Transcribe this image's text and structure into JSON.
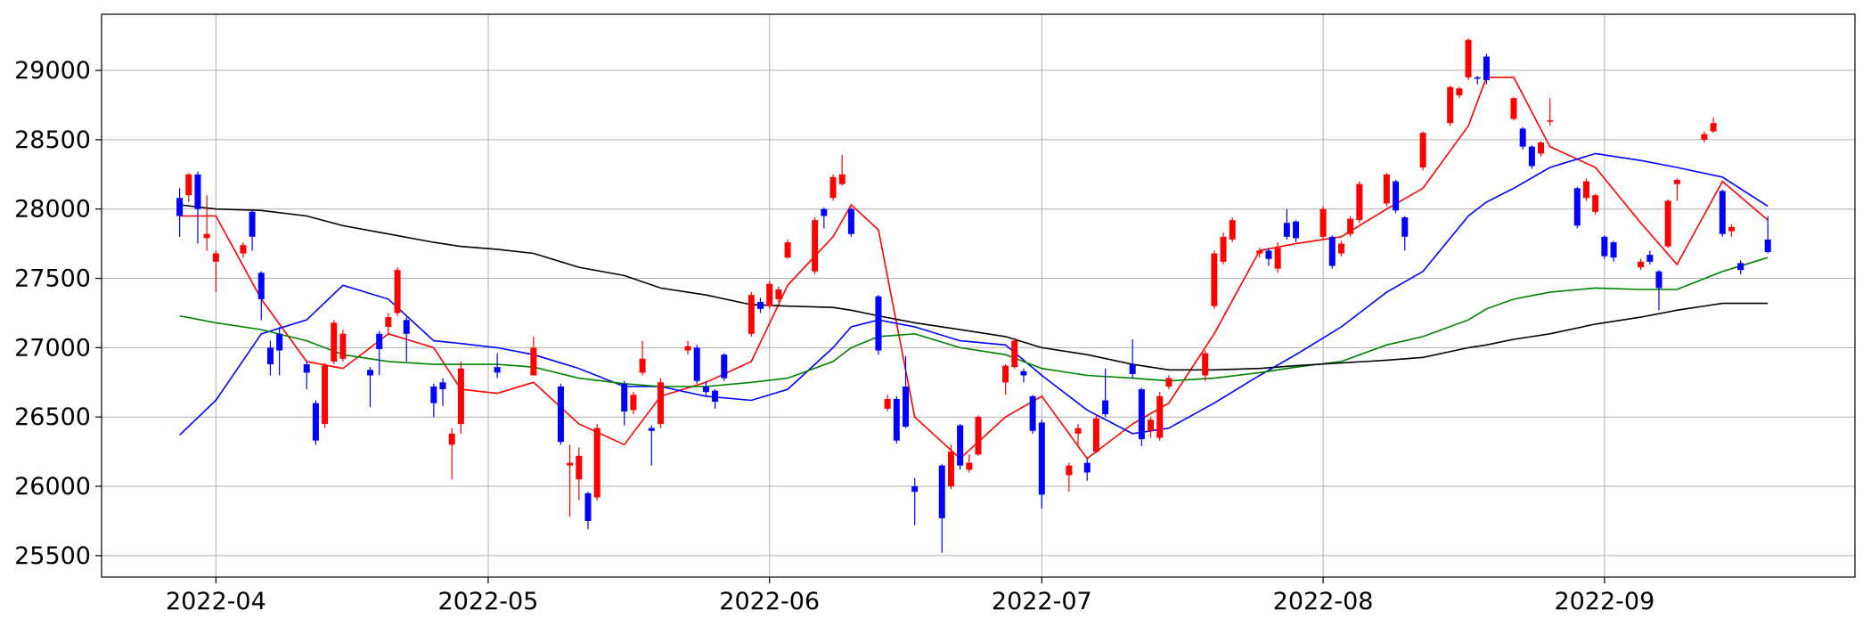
{
  "chart_data": {
    "type": "candlestick",
    "up_color": "#ff0000",
    "down_color": "#0000ff",
    "grid": true,
    "xlim": [
      19070.4,
      19263.6
    ],
    "ylim": [
      25345,
      29405
    ],
    "yticks": [
      25500,
      26000,
      26500,
      27000,
      27500,
      28000,
      28500,
      29000
    ],
    "xticks": [
      {
        "value": 19083,
        "label": "2022-04"
      },
      {
        "value": 19113,
        "label": "2022-05"
      },
      {
        "value": 19144,
        "label": "2022-06"
      },
      {
        "value": 19174,
        "label": "2022-07"
      },
      {
        "value": 19205,
        "label": "2022-08"
      },
      {
        "value": 19236,
        "label": "2022-09"
      }
    ],
    "x": [
      19079,
      19080,
      19081,
      19082,
      19083,
      19086,
      19087,
      19088,
      19089,
      19090,
      19093,
      19094,
      19095,
      19096,
      19097,
      19100,
      19101,
      19102,
      19103,
      19104,
      19107,
      19108,
      19109,
      19110,
      19114,
      19118,
      19121,
      19122,
      19123,
      19124,
      19125,
      19128,
      19129,
      19130,
      19131,
      19132,
      19135,
      19136,
      19137,
      19138,
      19139,
      19142,
      19143,
      19144,
      19145,
      19146,
      19149,
      19150,
      19151,
      19152,
      19153,
      19156,
      19157,
      19158,
      19159,
      19160,
      19163,
      19164,
      19165,
      19166,
      19167,
      19170,
      19171,
      19172,
      19173,
      19174,
      19177,
      19178,
      19179,
      19180,
      19181,
      19184,
      19185,
      19186,
      19187,
      19188,
      19192,
      19193,
      19194,
      19195,
      19198,
      19199,
      19200,
      19201,
      19202,
      19205,
      19206,
      19207,
      19208,
      19209,
      19212,
      19213,
      19214,
      19216,
      19219,
      19220,
      19221,
      19222,
      19223,
      19226,
      19227,
      19228,
      19229,
      19230,
      19233,
      19234,
      19235,
      19236,
      19237,
      19240,
      19241,
      19242,
      19243,
      19244,
      19247,
      19248,
      19249,
      19250,
      19251,
      19254
    ],
    "open": [
      28080,
      28100,
      28250,
      27790,
      27620,
      27680,
      27980,
      27540,
      27000,
      27100,
      26880,
      26600,
      26450,
      26900,
      26920,
      26840,
      27100,
      27150,
      27250,
      27200,
      26720,
      26750,
      26300,
      26450,
      26860,
      26800,
      26720,
      26150,
      26050,
      25950,
      25920,
      26740,
      26550,
      26820,
      26420,
      26450,
      26980,
      27000,
      26720,
      26690,
      26950,
      27100,
      27330,
      27300,
      27350,
      27650,
      27550,
      28000,
      28080,
      28180,
      28000,
      27370,
      26560,
      26630,
      26720,
      26000,
      26150,
      26000,
      26440,
      26120,
      26230,
      26750,
      26860,
      26830,
      26650,
      26460,
      26080,
      26380,
      26170,
      26250,
      26620,
      26880,
      26700,
      26400,
      26350,
      26720,
      26800,
      27300,
      27620,
      27780,
      27680,
      27700,
      27570,
      27900,
      27910,
      27800,
      27800,
      27680,
      27820,
      27920,
      28040,
      28200,
      27940,
      28300,
      28620,
      28820,
      28950,
      28950,
      29100,
      28650,
      28580,
      28450,
      28400,
      28630,
      28150,
      28080,
      27980,
      27800,
      27760,
      27580,
      27670,
      27550,
      27730,
      28180,
      28500,
      28560,
      28130,
      27840,
      27610,
      27780
    ],
    "high": [
      28150,
      28260,
      28270,
      28100,
      27700,
      27760,
      27990,
      27550,
      27050,
      27150,
      26900,
      26620,
      26890,
      27200,
      27130,
      26860,
      27120,
      27250,
      27580,
      27220,
      26740,
      26780,
      26420,
      26900,
      26960,
      27080,
      26740,
      26300,
      26280,
      25960,
      26450,
      26760,
      26680,
      27050,
      26440,
      26780,
      27050,
      27020,
      26760,
      26700,
      26960,
      27400,
      27360,
      27480,
      27440,
      27780,
      27940,
      28010,
      28250,
      28390,
      28010,
      27380,
      26660,
      26650,
      26940,
      26060,
      26160,
      26300,
      26450,
      26230,
      26510,
      26880,
      27070,
      26850,
      26660,
      26480,
      26170,
      26450,
      26200,
      26520,
      26850,
      27060,
      26710,
      26500,
      26680,
      26800,
      26980,
      27700,
      27830,
      27940,
      27720,
      27720,
      27760,
      28000,
      27920,
      28020,
      27810,
      27770,
      27950,
      28200,
      28260,
      28210,
      27950,
      28560,
      28890,
      28880,
      29230,
      28960,
      29120,
      28810,
      28590,
      28460,
      28490,
      28800,
      28160,
      28220,
      28110,
      27810,
      27770,
      27640,
      27700,
      27560,
      28070,
      28220,
      28560,
      28660,
      28140,
      27890,
      27630,
      27950
    ],
    "low": [
      27800,
      28050,
      27750,
      27700,
      27400,
      27650,
      27700,
      27200,
      26800,
      26800,
      26700,
      26300,
      26420,
      26880,
      26900,
      26570,
      26800,
      27100,
      27230,
      26900,
      26500,
      26580,
      26050,
      26380,
      26780,
      26800,
      26300,
      25780,
      25900,
      25690,
      25900,
      26440,
      26520,
      26800,
      26150,
      26420,
      26950,
      26740,
      26650,
      26560,
      26760,
      27080,
      27250,
      27280,
      27330,
      27640,
      27530,
      27860,
      28060,
      28170,
      27800,
      26950,
      26540,
      26310,
      26420,
      25720,
      25520,
      25980,
      26120,
      26100,
      26220,
      26660,
      26850,
      26750,
      26380,
      25840,
      25960,
      26300,
      26040,
      26240,
      26500,
      26780,
      26290,
      26350,
      26330,
      26700,
      26760,
      27280,
      27600,
      27760,
      27650,
      27590,
      27540,
      27780,
      27760,
      27780,
      27570,
      27660,
      27800,
      27900,
      28020,
      27970,
      27700,
      28280,
      28600,
      28800,
      28930,
      28900,
      28900,
      28640,
      28430,
      28290,
      28380,
      28600,
      27860,
      28060,
      27960,
      27640,
      27620,
      27560,
      27600,
      27270,
      27720,
      28060,
      28480,
      28550,
      27800,
      27800,
      27530,
      27680
    ],
    "close": [
      27950,
      28250,
      28000,
      27820,
      27680,
      27740,
      27800,
      27350,
      26880,
      26980,
      26820,
      26330,
      26870,
      27180,
      27100,
      26800,
      26990,
      27220,
      27560,
      27100,
      26600,
      26700,
      26380,
      26850,
      26820,
      27000,
      26320,
      26170,
      26220,
      25750,
      26420,
      26540,
      26660,
      26920,
      26400,
      26750,
      27010,
      26760,
      26680,
      26610,
      26780,
      27380,
      27280,
      27460,
      27420,
      27760,
      27920,
      27950,
      28230,
      28250,
      27820,
      26980,
      26630,
      26330,
      26430,
      25960,
      25770,
      26250,
      26150,
      26170,
      26500,
      26870,
      27050,
      26800,
      26400,
      25940,
      26150,
      26420,
      26100,
      26490,
      26520,
      26810,
      26340,
      26480,
      26650,
      26780,
      26960,
      27680,
      27800,
      27920,
      27700,
      27640,
      27720,
      27800,
      27790,
      28000,
      27590,
      27750,
      27930,
      28180,
      28250,
      27990,
      27800,
      28550,
      28880,
      28870,
      29220,
      28940,
      28930,
      28800,
      28450,
      28310,
      28480,
      28640,
      27880,
      28200,
      28100,
      27660,
      27650,
      27620,
      27620,
      27430,
      28060,
      28210,
      28540,
      28620,
      27820,
      27870,
      27560,
      27690
    ],
    "lines": [
      {
        "color": "#ff0000",
        "x": [
          19079,
          19083,
          19088,
          19093,
          19097,
          19102,
          19107,
          19110,
          19114,
          19118,
          19123,
          19128,
          19132,
          19137,
          19142,
          19146,
          19151,
          19153,
          19156,
          19160,
          19165,
          19170,
          19174,
          19179,
          19184,
          19188,
          19193,
          19198,
          19202,
          19207,
          19212,
          19216,
          19221,
          19223,
          19226,
          19230,
          19235,
          19240,
          19244,
          19249,
          19254
        ],
        "values": [
          27950,
          27950,
          27350,
          26900,
          26850,
          27100,
          27000,
          26700,
          26670,
          26750,
          26450,
          26300,
          26650,
          26750,
          26900,
          27450,
          27800,
          28030,
          27850,
          26500,
          26200,
          26500,
          26650,
          26200,
          26450,
          26600,
          27100,
          27700,
          27750,
          27800,
          28000,
          28150,
          28600,
          28950,
          28950,
          28450,
          28300,
          27900,
          27600,
          28200,
          27920
        ]
      },
      {
        "color": "#0000ff",
        "x": [
          19079,
          19083,
          19088,
          19093,
          19097,
          19102,
          19107,
          19110,
          19114,
          19118,
          19123,
          19128,
          19132,
          19137,
          19142,
          19146,
          19151,
          19153,
          19156,
          19160,
          19165,
          19170,
          19174,
          19179,
          19184,
          19188,
          19193,
          19198,
          19202,
          19207,
          19212,
          19216,
          19221,
          19223,
          19226,
          19230,
          19235,
          19240,
          19244,
          19249,
          19254
        ],
        "values": [
          26370,
          26620,
          27100,
          27200,
          27450,
          27350,
          27050,
          27030,
          27000,
          26950,
          26850,
          26720,
          26720,
          26650,
          26620,
          26700,
          27000,
          27150,
          27200,
          27150,
          27050,
          27020,
          26800,
          26550,
          26380,
          26420,
          26600,
          26800,
          26950,
          27150,
          27400,
          27550,
          27950,
          28050,
          28150,
          28300,
          28400,
          28350,
          28300,
          28230,
          28020
        ]
      },
      {
        "color": "#008000",
        "x": [
          19079,
          19083,
          19088,
          19093,
          19097,
          19102,
          19107,
          19110,
          19114,
          19118,
          19123,
          19128,
          19132,
          19137,
          19142,
          19146,
          19151,
          19153,
          19156,
          19160,
          19165,
          19170,
          19174,
          19179,
          19184,
          19188,
          19193,
          19198,
          19202,
          19207,
          19212,
          19216,
          19221,
          19223,
          19226,
          19230,
          19235,
          19240,
          19244,
          19249,
          19254
        ],
        "values": [
          27230,
          27180,
          27130,
          27050,
          26950,
          26900,
          26880,
          26880,
          26880,
          26860,
          26780,
          26740,
          26720,
          26720,
          26750,
          26780,
          26900,
          27000,
          27080,
          27100,
          27000,
          26950,
          26850,
          26800,
          26780,
          26760,
          26780,
          26820,
          26860,
          26900,
          27020,
          27080,
          27200,
          27280,
          27350,
          27400,
          27430,
          27420,
          27420,
          27550,
          27650
        ]
      },
      {
        "color": "#000000",
        "x": [
          19079,
          19083,
          19088,
          19093,
          19097,
          19102,
          19107,
          19110,
          19114,
          19118,
          19123,
          19128,
          19132,
          19137,
          19142,
          19146,
          19151,
          19153,
          19156,
          19160,
          19165,
          19170,
          19174,
          19179,
          19184,
          19188,
          19193,
          19198,
          19202,
          19207,
          19212,
          19216,
          19221,
          19223,
          19226,
          19230,
          19235,
          19240,
          19244,
          19249,
          19254
        ],
        "values": [
          28030,
          28000,
          27990,
          27950,
          27880,
          27820,
          27760,
          27730,
          27710,
          27680,
          27580,
          27520,
          27430,
          27380,
          27310,
          27300,
          27290,
          27270,
          27230,
          27180,
          27130,
          27080,
          27000,
          26950,
          26880,
          26840,
          26840,
          26850,
          26870,
          26890,
          26910,
          26930,
          27000,
          27020,
          27060,
          27100,
          27170,
          27220,
          27270,
          27320,
          27320
        ]
      }
    ]
  }
}
